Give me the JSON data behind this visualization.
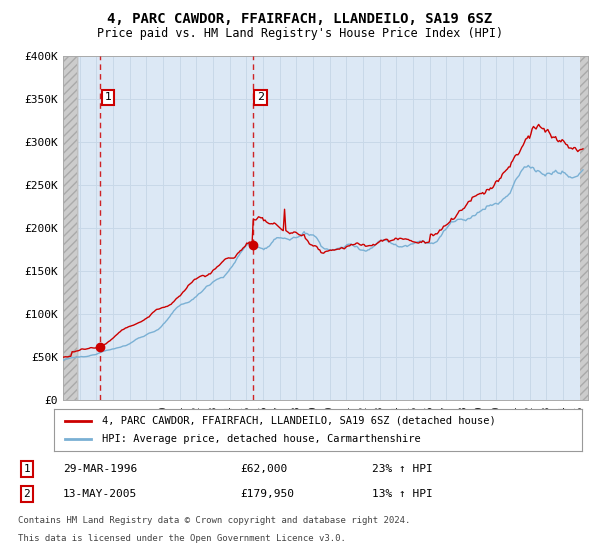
{
  "title": "4, PARC CAWDOR, FFAIRFACH, LLANDEILO, SA19 6SZ",
  "subtitle": "Price paid vs. HM Land Registry's House Price Index (HPI)",
  "ylim": [
    0,
    400000
  ],
  "yticks": [
    0,
    50000,
    100000,
    150000,
    200000,
    250000,
    300000,
    350000,
    400000
  ],
  "ytick_labels": [
    "£0",
    "£50K",
    "£100K",
    "£150K",
    "£200K",
    "£250K",
    "£300K",
    "£350K",
    "£400K"
  ],
  "sale1_year": 1996.23,
  "sale1_price": 62000,
  "sale1_date": "29-MAR-1996",
  "sale1_pct": "23%",
  "sale2_year": 2005.37,
  "sale2_price": 179950,
  "sale2_date": "13-MAY-2005",
  "sale2_pct": "13%",
  "legend_line1": "4, PARC CAWDOR, FFAIRFACH, LLANDEILO, SA19 6SZ (detached house)",
  "legend_line2": "HPI: Average price, detached house, Carmarthenshire",
  "footnote1": "Contains HM Land Registry data © Crown copyright and database right 2024.",
  "footnote2": "This data is licensed under the Open Government Licence v3.0.",
  "line_color": "#cc0000",
  "hpi_color": "#7ab0d4",
  "grid_color": "#c8d8e8",
  "background_color": "#ffffff",
  "plot_bg_color": "#dce8f5",
  "hatch_bg": "#c8c8c8"
}
